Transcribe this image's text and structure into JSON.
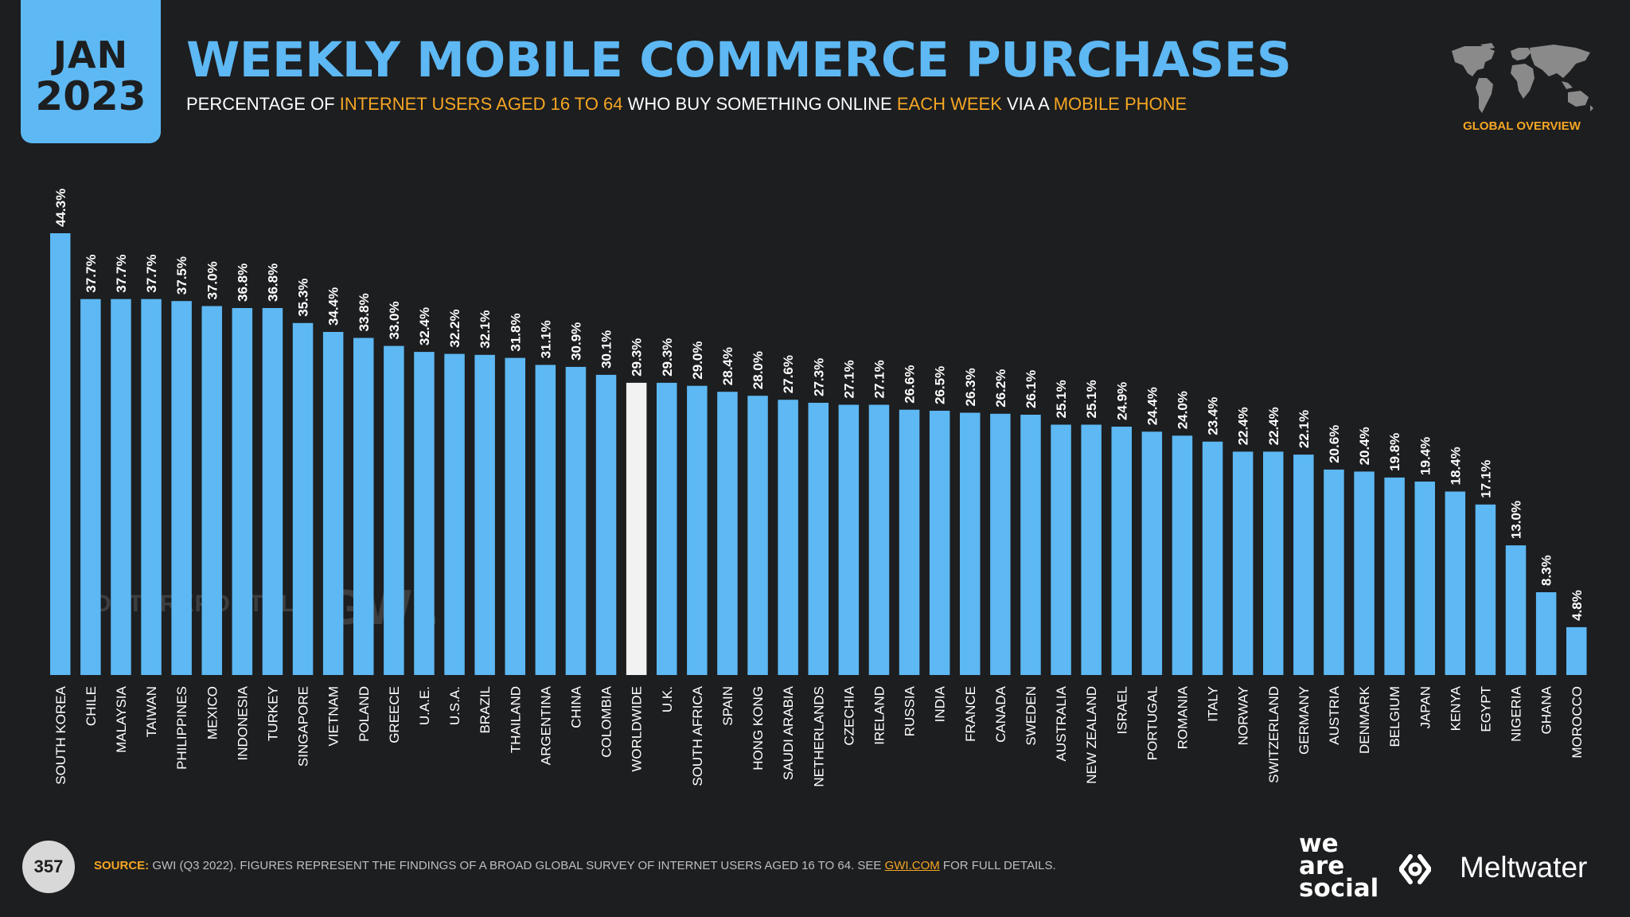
{
  "header": {
    "month": "JAN",
    "year": "2023",
    "title": "WEEKLY MOBILE COMMERCE PURCHASES",
    "subtitle_parts": {
      "p1": "PERCENTAGE OF ",
      "p2": "INTERNET USERS AGED 16 TO 64",
      "p3": " WHO BUY SOMETHING ONLINE ",
      "p4": "EACH WEEK",
      "p5": " VIA A ",
      "p6": "MOBILE PHONE"
    },
    "section_label": "GLOBAL OVERVIEW"
  },
  "watermarks": {
    "datareportal": "DATAREPORTAL",
    "gwi": "GWI."
  },
  "footer": {
    "page_number": "357",
    "source_label": "SOURCE:",
    "source_text_1": " GWI (Q3 2022). FIGURES REPRESENT THE FINDINGS OF A BROAD GLOBAL SURVEY OF INTERNET USERS AGED 16 TO 64. SEE ",
    "source_link": "GWI.COM",
    "source_text_2": " FOR FULL DETAILS.",
    "brand_we": "we",
    "brand_are": "are",
    "brand_social": "social",
    "brand_meltwater": "Meltwater"
  },
  "colors": {
    "bar": "#5db8f3",
    "highlight_bar": "#f2f2f2",
    "accent": "#f5a623",
    "background": "#1d1e20"
  },
  "chart_data": {
    "type": "bar",
    "title": "WEEKLY MOBILE COMMERCE PURCHASES",
    "ylabel": "",
    "xlabel": "",
    "ylim": [
      0,
      44.3
    ],
    "value_suffix": "%",
    "highlight_category": "WORLDWIDE",
    "categories": [
      "SOUTH KOREA",
      "CHILE",
      "MALAYSIA",
      "TAIWAN",
      "PHILIPPINES",
      "MEXICO",
      "INDONESIA",
      "TURKEY",
      "SINGAPORE",
      "VIETNAM",
      "POLAND",
      "GREECE",
      "U.A.E.",
      "U.S.A.",
      "BRAZIL",
      "THAILAND",
      "ARGENTINA",
      "CHINA",
      "COLOMBIA",
      "WORLDWIDE",
      "U.K.",
      "SOUTH AFRICA",
      "SPAIN",
      "HONG KONG",
      "SAUDI ARABIA",
      "NETHERLANDS",
      "CZECHIA",
      "IRELAND",
      "RUSSIA",
      "INDIA",
      "FRANCE",
      "CANADA",
      "SWEDEN",
      "AUSTRALIA",
      "NEW ZEALAND",
      "ISRAEL",
      "PORTUGAL",
      "ROMANIA",
      "ITALY",
      "NORWAY",
      "SWITZERLAND",
      "GERMANY",
      "AUSTRIA",
      "DENMARK",
      "BELGIUM",
      "JAPAN",
      "KENYA",
      "EGYPT",
      "NIGERIA",
      "GHANA",
      "MOROCCO"
    ],
    "values": [
      44.3,
      37.7,
      37.7,
      37.7,
      37.5,
      37.0,
      36.8,
      36.8,
      35.3,
      34.4,
      33.8,
      33.0,
      32.4,
      32.2,
      32.1,
      31.8,
      31.1,
      30.9,
      30.1,
      29.3,
      29.3,
      29.0,
      28.4,
      28.0,
      27.6,
      27.3,
      27.1,
      27.1,
      26.6,
      26.5,
      26.3,
      26.2,
      26.1,
      25.1,
      25.1,
      24.9,
      24.4,
      24.0,
      23.4,
      22.4,
      22.4,
      22.1,
      20.6,
      20.4,
      19.8,
      19.4,
      18.4,
      17.1,
      13.0,
      8.3,
      4.8
    ]
  }
}
